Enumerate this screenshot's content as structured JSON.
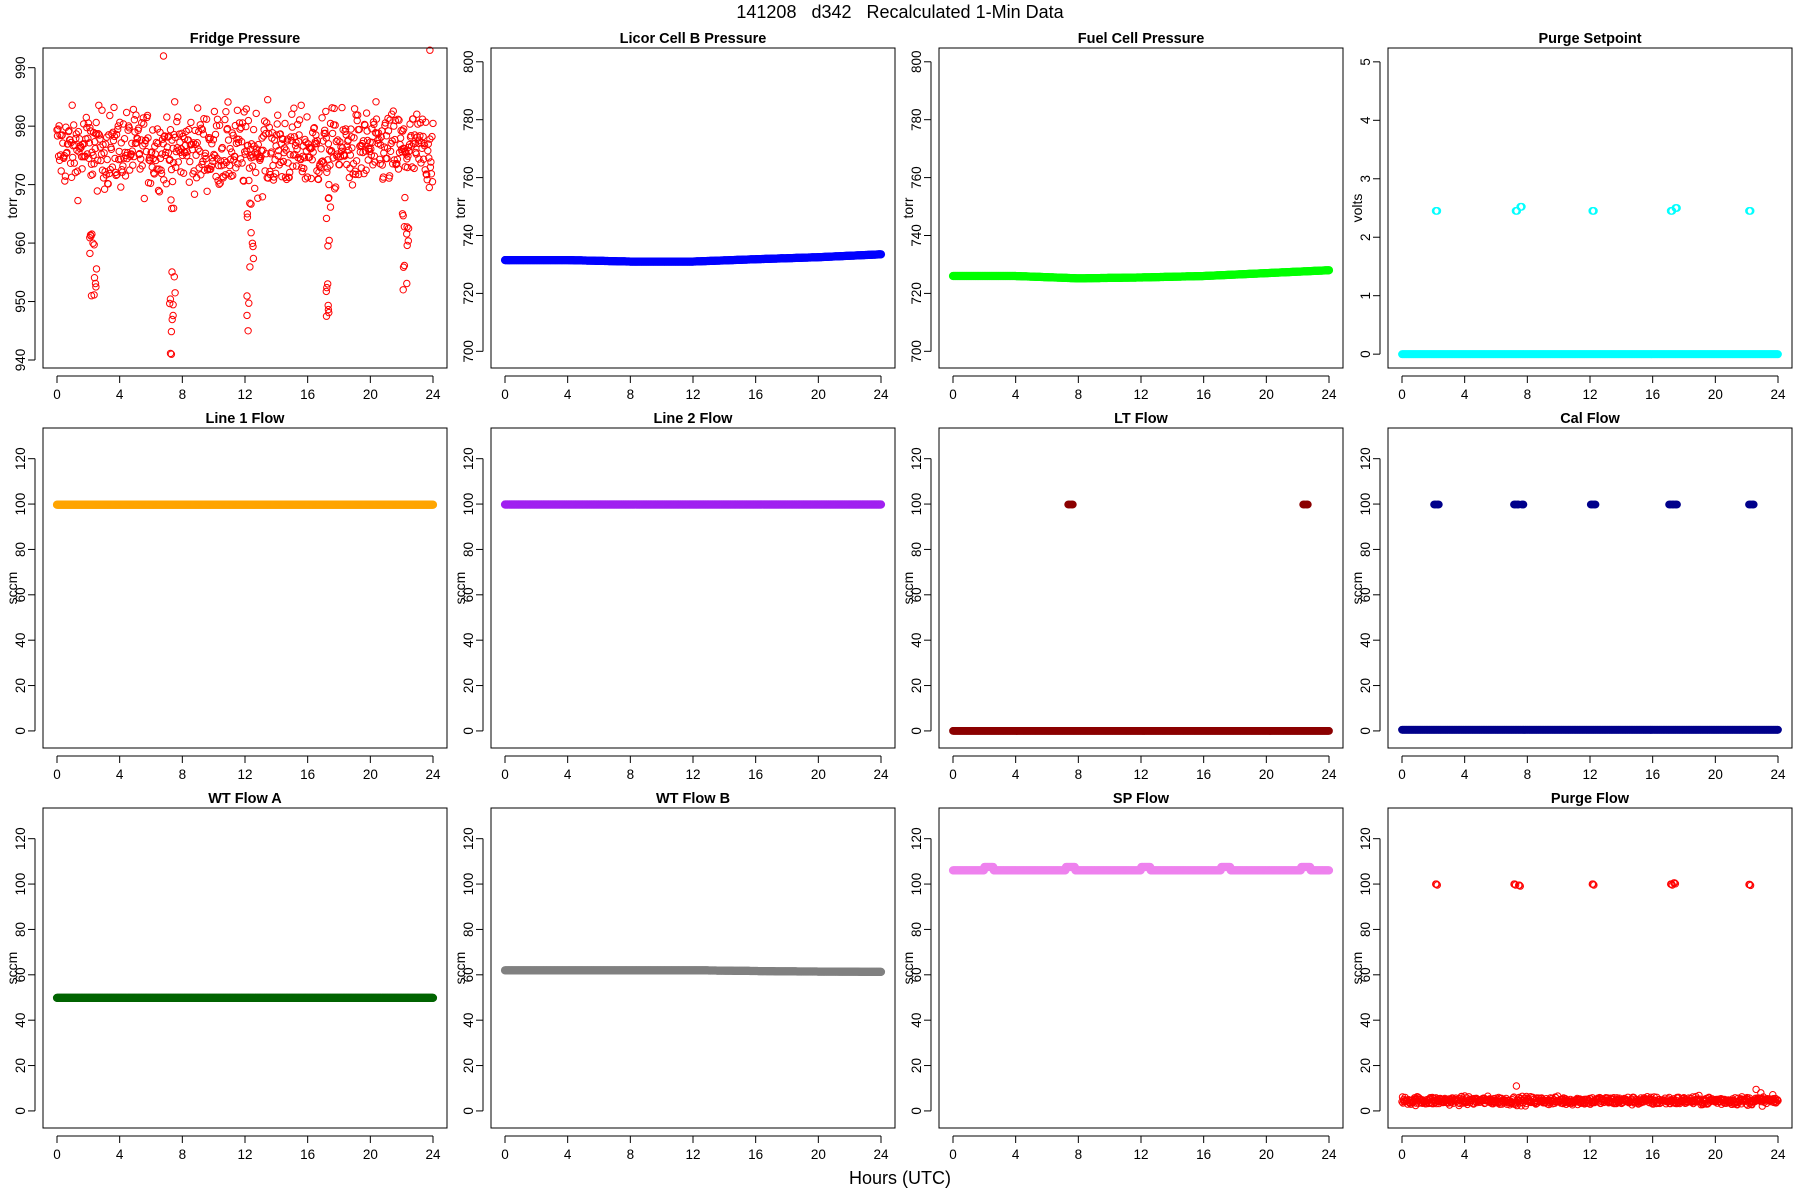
{
  "title": "141208   d342   Recalculated 1-Min Data",
  "xlabel": "Hours (UTC)",
  "chart_data": [
    {
      "type": "scatter",
      "title": "Fridge Pressure",
      "ylabel": "torr",
      "xlim": [
        0,
        24
      ],
      "ylim": [
        940,
        992
      ],
      "yticks": [
        940,
        950,
        960,
        970,
        980,
        990
      ],
      "xticks": [
        0,
        4,
        8,
        12,
        16,
        20,
        24
      ],
      "series": [
        {
          "color": "#ff0000",
          "marker": "open-circle",
          "mode": "noise",
          "mean": 976,
          "spread": 6,
          "dips": [
            [
              2.2,
              951
            ],
            [
              7.3,
              941
            ],
            [
              12.2,
              945
            ],
            [
              17.2,
              947.5
            ],
            [
              22.1,
              952
            ]
          ],
          "peaks": [
            [
              6.8,
              992
            ],
            [
              23.8,
              993
            ]
          ]
        }
      ]
    },
    {
      "type": "scatter",
      "title": "Licor Cell B Pressure",
      "ylabel": "torr",
      "xlim": [
        0,
        24
      ],
      "ylim": [
        697,
        802
      ],
      "yticks": [
        700,
        720,
        740,
        760,
        780,
        800
      ],
      "xticks": [
        0,
        4,
        8,
        12,
        16,
        20,
        24
      ],
      "series": [
        {
          "color": "#0000ff",
          "marker": "filled-circle",
          "mode": "curve",
          "curve": [
            [
              0,
              731.5
            ],
            [
              4,
              731.5
            ],
            [
              8,
              731
            ],
            [
              12,
              731
            ],
            [
              16,
              731.8
            ],
            [
              20,
              732.5
            ],
            [
              24,
              733.5
            ]
          ]
        }
      ]
    },
    {
      "type": "scatter",
      "title": "Fuel Cell Pressure",
      "ylabel": "torr",
      "xlim": [
        0,
        24
      ],
      "ylim": [
        697,
        802
      ],
      "yticks": [
        700,
        720,
        740,
        760,
        780,
        800
      ],
      "xticks": [
        0,
        4,
        8,
        12,
        16,
        20,
        24
      ],
      "series": [
        {
          "color": "#00ff00",
          "marker": "filled-circle",
          "mode": "curve",
          "curve": [
            [
              0,
              726
            ],
            [
              4,
              726
            ],
            [
              8,
              725.2
            ],
            [
              12,
              725.5
            ],
            [
              16,
              726
            ],
            [
              20,
              727
            ],
            [
              24,
              728
            ]
          ]
        }
      ]
    },
    {
      "type": "scatter",
      "title": "Purge Setpoint",
      "ylabel": "volts",
      "xlim": [
        0,
        24
      ],
      "ylim": [
        -0.1,
        5.1
      ],
      "yticks": [
        0,
        1,
        2,
        3,
        4,
        5
      ],
      "xticks": [
        0,
        4,
        8,
        12,
        16,
        20,
        24
      ],
      "series": [
        {
          "color": "#00ffff",
          "marker": "open-circle",
          "mode": "base",
          "base": 0,
          "events": [
            [
              2.2,
              2.45
            ],
            [
              7.3,
              2.45
            ],
            [
              7.6,
              2.52
            ],
            [
              12.2,
              2.45
            ],
            [
              17.2,
              2.45
            ],
            [
              17.5,
              2.5
            ],
            [
              22.2,
              2.45
            ]
          ]
        }
      ]
    },
    {
      "type": "scatter",
      "title": "Line 1 Flow",
      "ylabel": "sccm",
      "xlim": [
        0,
        24
      ],
      "ylim": [
        -4,
        130
      ],
      "yticks": [
        0,
        20,
        40,
        60,
        80,
        100,
        120
      ],
      "xticks": [
        0,
        4,
        8,
        12,
        16,
        20,
        24
      ],
      "series": [
        {
          "color": "#ffa500",
          "marker": "filled-circle",
          "mode": "curve",
          "curve": [
            [
              0,
              99.7
            ],
            [
              24,
              99.7
            ]
          ]
        }
      ]
    },
    {
      "type": "scatter",
      "title": "Line 2 Flow",
      "ylabel": "sccm",
      "xlim": [
        0,
        24
      ],
      "ylim": [
        -4,
        130
      ],
      "yticks": [
        0,
        20,
        40,
        60,
        80,
        100,
        120
      ],
      "xticks": [
        0,
        4,
        8,
        12,
        16,
        20,
        24
      ],
      "series": [
        {
          "color": "#a020f0",
          "marker": "filled-circle",
          "mode": "curve",
          "curve": [
            [
              0,
              99.8
            ],
            [
              24,
              99.8
            ]
          ]
        }
      ]
    },
    {
      "type": "scatter",
      "title": "LT Flow",
      "ylabel": "sccm",
      "xlim": [
        0,
        24
      ],
      "ylim": [
        -4,
        130
      ],
      "yticks": [
        0,
        20,
        40,
        60,
        80,
        100,
        120
      ],
      "xticks": [
        0,
        4,
        8,
        12,
        16,
        20,
        24
      ],
      "series": [
        {
          "color": "#8b0000",
          "marker": "filled-circle",
          "mode": "base",
          "base": 0,
          "events": [
            [
              7.4,
              99.8
            ],
            [
              7.6,
              99.8
            ],
            [
              22.4,
              99.8
            ],
            [
              22.6,
              99.8
            ]
          ]
        }
      ]
    },
    {
      "type": "scatter",
      "title": "Cal Flow",
      "ylabel": "sccm",
      "xlim": [
        0,
        24
      ],
      "ylim": [
        -4,
        130
      ],
      "yticks": [
        0,
        20,
        40,
        60,
        80,
        100,
        120
      ],
      "xticks": [
        0,
        4,
        8,
        12,
        16,
        20,
        24
      ],
      "series": [
        {
          "color": "#00008b",
          "marker": "filled-circle",
          "mode": "base",
          "base": 0.5,
          "events": [
            [
              2.1,
              99.8
            ],
            [
              2.3,
              99.8
            ],
            [
              7.2,
              99.8
            ],
            [
              7.4,
              99.8
            ],
            [
              7.7,
              99.8
            ],
            [
              12.1,
              99.8
            ],
            [
              12.3,
              99.8
            ],
            [
              17.1,
              99.8
            ],
            [
              17.3,
              99.8
            ],
            [
              17.5,
              99.8
            ],
            [
              22.2,
              99.8
            ],
            [
              22.4,
              99.8
            ]
          ]
        }
      ]
    },
    {
      "type": "scatter",
      "title": "WT Flow A",
      "ylabel": "sccm",
      "xlim": [
        0,
        24
      ],
      "ylim": [
        -4,
        130
      ],
      "yticks": [
        0,
        20,
        40,
        60,
        80,
        100,
        120
      ],
      "xticks": [
        0,
        4,
        8,
        12,
        16,
        20,
        24
      ],
      "series": [
        {
          "color": "#006400",
          "marker": "filled-circle",
          "mode": "curve",
          "curve": [
            [
              0,
              49.8
            ],
            [
              24,
              49.8
            ]
          ]
        }
      ]
    },
    {
      "type": "scatter",
      "title": "WT Flow B",
      "ylabel": "sccm",
      "xlim": [
        0,
        24
      ],
      "ylim": [
        -4,
        130
      ],
      "yticks": [
        0,
        20,
        40,
        60,
        80,
        100,
        120
      ],
      "xticks": [
        0,
        4,
        8,
        12,
        16,
        20,
        24
      ],
      "series": [
        {
          "color": "#808080",
          "marker": "filled-circle",
          "mode": "curve",
          "curve": [
            [
              0,
              62
            ],
            [
              12,
              62
            ],
            [
              18,
              61.5
            ],
            [
              24,
              61.3
            ]
          ]
        }
      ]
    },
    {
      "type": "scatter",
      "title": "SP Flow",
      "ylabel": "sccm",
      "xlim": [
        0,
        24
      ],
      "ylim": [
        -4,
        130
      ],
      "yticks": [
        0,
        20,
        40,
        60,
        80,
        100,
        120
      ],
      "xticks": [
        0,
        4,
        8,
        12,
        16,
        20,
        24
      ],
      "series": [
        {
          "color": "#ee82ee",
          "marker": "filled-circle",
          "mode": "curve",
          "curve": [
            [
              0,
              106
            ],
            [
              24,
              106
            ]
          ],
          "bumps": [
            2.3,
            7.5,
            12.3,
            17.4,
            22.5
          ],
          "bump": 1.5
        }
      ]
    },
    {
      "type": "scatter",
      "title": "Purge Flow",
      "ylabel": "sccm",
      "xlim": [
        0,
        24
      ],
      "ylim": [
        -4,
        130
      ],
      "yticks": [
        0,
        20,
        40,
        60,
        80,
        100,
        120
      ],
      "xticks": [
        0,
        4,
        8,
        12,
        16,
        20,
        24
      ],
      "series": [
        {
          "color": "#ff0000",
          "marker": "open-circle",
          "mode": "noisybase",
          "base": 4.5,
          "spread": 1.8,
          "events": [
            [
              2.2,
              100
            ],
            [
              7.2,
              100
            ],
            [
              7.5,
              99.5
            ],
            [
              12.2,
              100
            ],
            [
              17.2,
              100
            ],
            [
              17.4,
              100.5
            ],
            [
              22.2,
              99.8
            ]
          ]
        }
      ]
    }
  ]
}
